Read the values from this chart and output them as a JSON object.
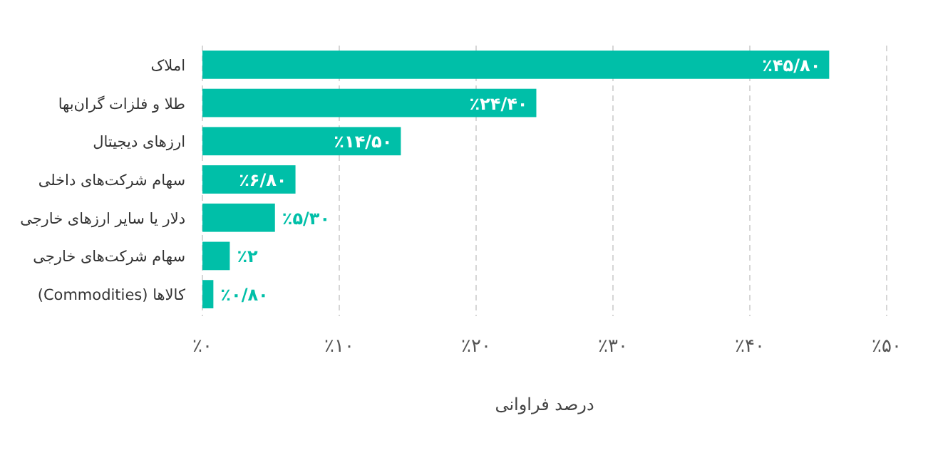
{
  "chart_data": {
    "type": "bar",
    "orientation": "horizontal",
    "xlabel": "درصد فراوانی",
    "categories": [
      "املاک",
      "طلا و فلزات گران‌بها",
      "ارزهای دیجیتال",
      "سهام شرکت‌های داخلی",
      "دلار یا سایر ارزهای خارجی",
      "سهام شرکت‌های خارجی",
      "کالاها (Commodities)"
    ],
    "values": [
      45.8,
      24.4,
      14.5,
      6.8,
      5.3,
      2,
      0.8
    ],
    "value_labels": [
      "٪۴۵/۸۰",
      "٪۲۴/۴۰",
      "٪۱۴/۵۰",
      "٪۶/۸۰",
      "٪۵/۳۰",
      "٪۲",
      "٪۰/۸۰"
    ],
    "color": "#00bfa8",
    "xlim": [
      0,
      50
    ],
    "xticks": [
      {
        "value": 0,
        "label": "٪۰"
      },
      {
        "value": 10,
        "label": "٪۱۰"
      },
      {
        "value": 20,
        "label": "٪۲۰"
      },
      {
        "value": 30,
        "label": "٪۳۰"
      },
      {
        "value": 40,
        "label": "٪۴۰"
      },
      {
        "value": 50,
        "label": "٪۵۰"
      }
    ],
    "grid": "x",
    "legend": false
  }
}
